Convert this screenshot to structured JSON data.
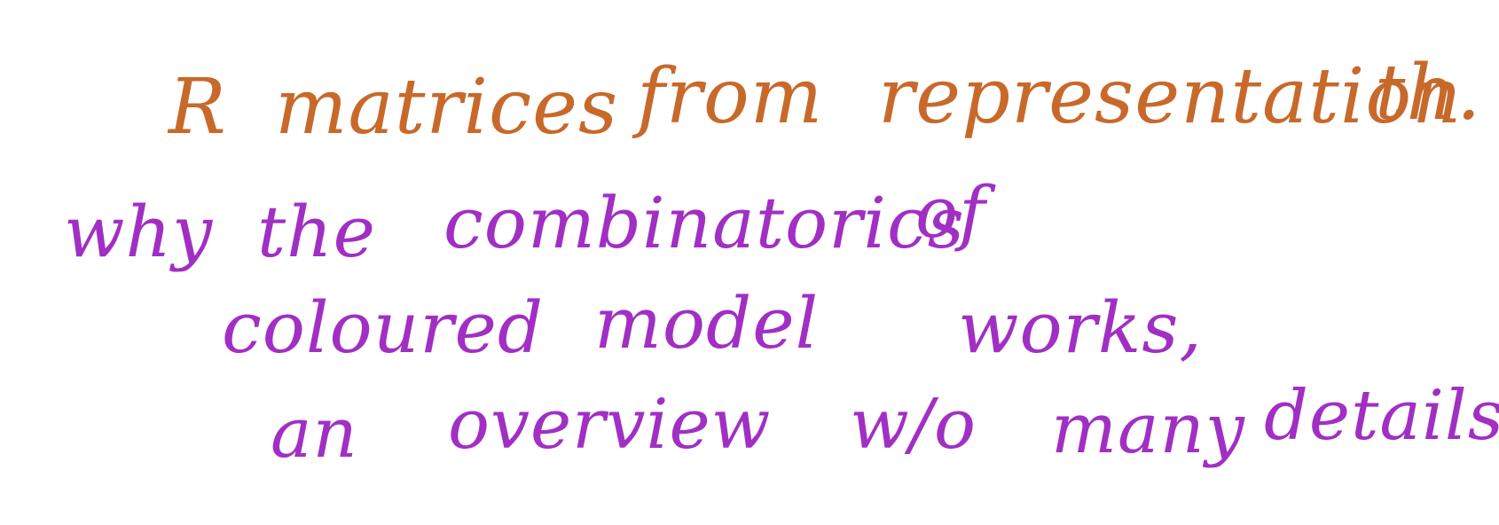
{
  "note": {
    "ink_colors": {
      "line1": "#C8692A",
      "lines2_4": "#A12FC4"
    },
    "lines": [
      {
        "words": [
          "R",
          "matrices",
          "from",
          "representation",
          "th."
        ]
      },
      {
        "words": [
          "why",
          "the",
          "combinatorics",
          "of"
        ]
      },
      {
        "words": [
          "coloured",
          "model",
          "works,"
        ]
      },
      {
        "words": [
          "an",
          "overview",
          "w/o",
          "many",
          "details"
        ]
      }
    ]
  }
}
